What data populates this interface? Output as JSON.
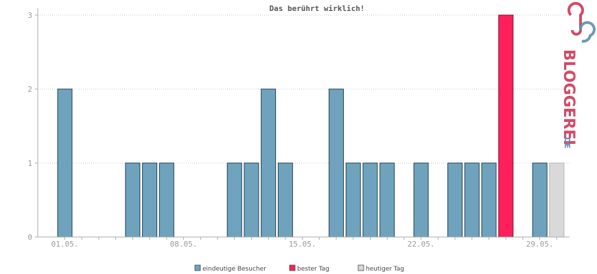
{
  "chart_data": {
    "type": "bar",
    "title": "Das berührt wirklich!",
    "xlabel": "",
    "ylabel": "",
    "ylim": [
      0,
      3
    ],
    "y_ticks": [
      "0",
      "1",
      "2",
      "3"
    ],
    "x_tick_labels": [
      {
        "day": 1,
        "label": "01.05."
      },
      {
        "day": 8,
        "label": "08.05."
      },
      {
        "day": 15,
        "label": "15.05."
      },
      {
        "day": 22,
        "label": "22.05."
      },
      {
        "day": 29,
        "label": "29.05."
      }
    ],
    "days": [
      1,
      2,
      3,
      4,
      5,
      6,
      7,
      8,
      9,
      10,
      11,
      12,
      13,
      14,
      15,
      16,
      17,
      18,
      19,
      20,
      21,
      22,
      23,
      24,
      25,
      26,
      27,
      28,
      29,
      30
    ],
    "values": [
      2,
      0,
      0,
      0,
      1,
      1,
      1,
      0,
      0,
      0,
      1,
      1,
      2,
      1,
      0,
      0,
      2,
      1,
      1,
      1,
      0,
      1,
      0,
      1,
      1,
      1,
      3,
      0,
      1,
      1
    ],
    "best_day": 27,
    "today": 30,
    "grid": true,
    "legend_position": "bottom-center",
    "legend": [
      {
        "key": "unique",
        "label": "eindeutige Besucher",
        "color": "#6fa3bd"
      },
      {
        "key": "best",
        "label": "bester Tag",
        "color": "#ff1f5a"
      },
      {
        "key": "today",
        "label": "heutiger Tag",
        "color": "#d9d9d9"
      }
    ]
  },
  "brand": {
    "name": "BLOGGEREI",
    "suffix": ".DE",
    "color_main": "#d24a68",
    "color_suffix": "#5c8fb0"
  }
}
